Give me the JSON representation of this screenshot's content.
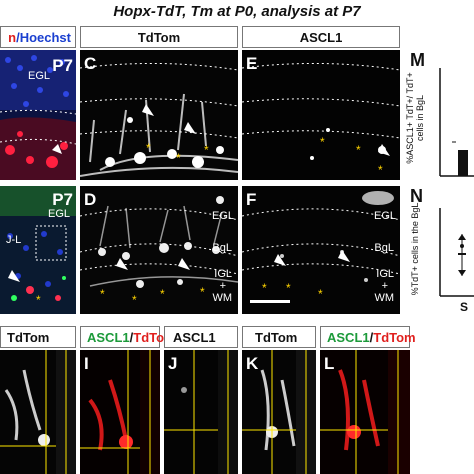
{
  "figure_title": "Hopx-TdT, Tm at P0, analysis at P7",
  "headers": {
    "col_left": "n/Hoechst",
    "col_c": "TdTom",
    "col_e": "ASCL1"
  },
  "panels": {
    "top_left": {
      "age": "P7",
      "region": "EGL"
    },
    "C": {
      "letter": "C"
    },
    "E": {
      "letter": "E"
    },
    "mid_left": {
      "age": "P7",
      "regions": [
        "J-L",
        "EGL"
      ]
    },
    "D": {
      "letter": "D",
      "regions": [
        "EGL",
        "BgL",
        "IGL",
        "+",
        "WM"
      ]
    },
    "F": {
      "letter": "F",
      "regions": [
        "EGL",
        "BgL",
        "IGL",
        "+",
        "WM"
      ]
    }
  },
  "charts": {
    "M": {
      "letter": "M",
      "ylabel": "%ASCL1+ TdT+/ TdT+ cells in BgL"
    },
    "N": {
      "letter": "N",
      "ylabel": "%TdT+ cells in the BgL",
      "xtick": "S"
    }
  },
  "bottom": {
    "h": {
      "label": "TdTom"
    },
    "I": {
      "letter": "I",
      "label_green": "ASCL1",
      "label_sep": "/",
      "label_red": "TdTom"
    },
    "J": {
      "letter": "J",
      "label": "ASCL1"
    },
    "K": {
      "letter": "K",
      "label": "TdTom"
    },
    "L": {
      "letter": "L",
      "label_green": "ASCL1",
      "label_sep": "/",
      "label_red": "TdTom"
    }
  }
}
